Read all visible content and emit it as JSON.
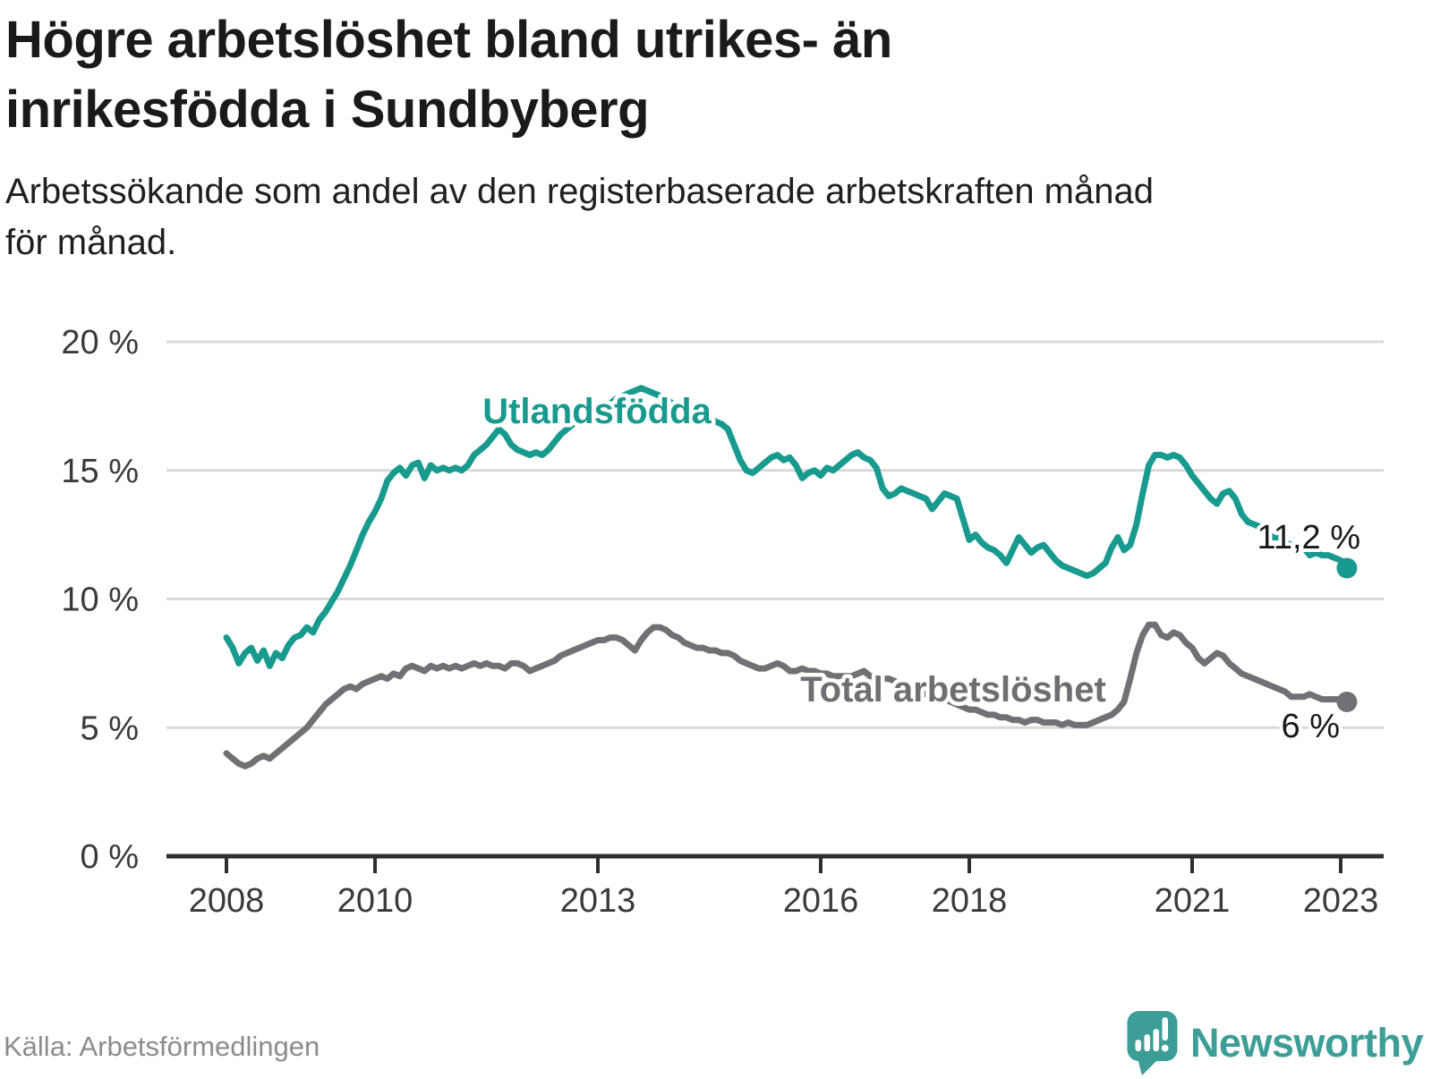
{
  "page": {
    "title_lines": [
      "Högre arbetslöshet bland utrikes- än",
      "inrikesfödda i Sundbyberg"
    ],
    "subtitle_lines": [
      "Arbetssökande som andel av den registerbaserade arbetskraften månad",
      "för månad."
    ],
    "source": "Källa: Arbetsförmedlingen",
    "brand": "Newsworthy"
  },
  "colors": {
    "foreign_born": "#189a8f",
    "total": "#717175",
    "total_label": "#6f6f73",
    "grid": "#d9d9d9",
    "axis": "#2e2e2e",
    "tick_label": "#3a3a3a",
    "title": "#1a1a1a",
    "subtitle": "#1f1f1f",
    "annotation": "#1a1a1a",
    "source": "#8c8c8c",
    "brand": "#3d9e97"
  },
  "chart_data": {
    "type": "line",
    "title": "Högre arbetslöshet bland utrikes- än inrikesfödda i Sundbyberg",
    "subtitle": "Arbetssökande som andel av den registerbaserade arbetskraften månad för månad.",
    "unit": "%",
    "grid": "horizontal",
    "x_start": "2008-01",
    "x_end": "2023-02",
    "x_step_months": 1,
    "ylim": [
      0,
      20
    ],
    "y_ticks": [
      {
        "value": 0,
        "label": "0 %"
      },
      {
        "value": 5,
        "label": "5 %"
      },
      {
        "value": 10,
        "label": "10 %"
      },
      {
        "value": 15,
        "label": "15 %"
      },
      {
        "value": 20,
        "label": "20 %"
      }
    ],
    "x_ticks": [
      {
        "year": 2008,
        "label": "2008"
      },
      {
        "year": 2010,
        "label": "2010"
      },
      {
        "year": 2013,
        "label": "2013"
      },
      {
        "year": 2016,
        "label": "2016"
      },
      {
        "year": 2018,
        "label": "2018"
      },
      {
        "year": 2021,
        "label": "2021"
      },
      {
        "year": 2023,
        "label": "2023"
      }
    ],
    "series": [
      {
        "name": "Utlandsfödda",
        "color_key": "foreign_born",
        "end_label": "11,2 %",
        "end_value": 11.2,
        "values": [
          8.5,
          8.1,
          7.5,
          7.9,
          8.1,
          7.6,
          8.0,
          7.4,
          7.9,
          7.7,
          8.2,
          8.5,
          8.6,
          8.9,
          8.7,
          9.2,
          9.5,
          9.9,
          10.3,
          10.8,
          11.3,
          11.9,
          12.5,
          13.0,
          13.4,
          13.9,
          14.6,
          14.9,
          15.1,
          14.8,
          15.2,
          15.3,
          14.7,
          15.2,
          15.0,
          15.1,
          15.0,
          15.1,
          15.0,
          15.2,
          15.6,
          15.8,
          16.0,
          16.3,
          16.6,
          16.4,
          16.0,
          15.8,
          15.7,
          15.6,
          15.7,
          15.6,
          15.8,
          16.1,
          16.4,
          16.6,
          16.8,
          17.0,
          17.2,
          17.3,
          17.4,
          17.5,
          17.6,
          17.8,
          17.9,
          18.0,
          18.1,
          18.2,
          18.1,
          18.0,
          17.9,
          17.8,
          17.6,
          17.5,
          17.4,
          17.3,
          17.2,
          17.1,
          17.0,
          16.9,
          16.8,
          16.6,
          16.0,
          15.4,
          15.0,
          14.9,
          15.1,
          15.3,
          15.5,
          15.6,
          15.4,
          15.5,
          15.2,
          14.7,
          14.9,
          15.0,
          14.8,
          15.1,
          15.0,
          15.2,
          15.4,
          15.6,
          15.7,
          15.5,
          15.4,
          15.1,
          14.3,
          14.0,
          14.1,
          14.3,
          14.2,
          14.1,
          14.0,
          13.9,
          13.5,
          13.8,
          14.1,
          14.0,
          13.9,
          13.1,
          12.3,
          12.5,
          12.2,
          12.0,
          11.9,
          11.7,
          11.4,
          11.9,
          12.4,
          12.1,
          11.8,
          12.0,
          12.1,
          11.8,
          11.5,
          11.3,
          11.2,
          11.1,
          11.0,
          10.9,
          11.0,
          11.2,
          11.4,
          12.0,
          12.4,
          11.9,
          12.1,
          12.9,
          14.1,
          15.2,
          15.6,
          15.6,
          15.5,
          15.6,
          15.5,
          15.2,
          14.8,
          14.5,
          14.2,
          13.9,
          13.7,
          14.1,
          14.2,
          13.9,
          13.3,
          13.0,
          12.9,
          12.8,
          12.6,
          12.4,
          12.4,
          12.2,
          12.1,
          11.9,
          12.0,
          11.7,
          11.8,
          11.7,
          11.7,
          11.6,
          11.5,
          11.2
        ]
      },
      {
        "name": "Total arbetslöshet",
        "color_key": "total",
        "end_label": "6 %",
        "end_value": 6.0,
        "values": [
          4.0,
          3.8,
          3.6,
          3.5,
          3.6,
          3.8,
          3.9,
          3.8,
          4.0,
          4.2,
          4.4,
          4.6,
          4.8,
          5.0,
          5.3,
          5.6,
          5.9,
          6.1,
          6.3,
          6.5,
          6.6,
          6.5,
          6.7,
          6.8,
          6.9,
          7.0,
          6.9,
          7.1,
          7.0,
          7.3,
          7.4,
          7.3,
          7.2,
          7.4,
          7.3,
          7.4,
          7.3,
          7.4,
          7.3,
          7.4,
          7.5,
          7.4,
          7.5,
          7.4,
          7.4,
          7.3,
          7.5,
          7.5,
          7.4,
          7.2,
          7.3,
          7.4,
          7.5,
          7.6,
          7.8,
          7.9,
          8.0,
          8.1,
          8.2,
          8.3,
          8.4,
          8.4,
          8.5,
          8.5,
          8.4,
          8.2,
          8.0,
          8.4,
          8.7,
          8.9,
          8.9,
          8.8,
          8.6,
          8.5,
          8.3,
          8.2,
          8.1,
          8.1,
          8.0,
          8.0,
          7.9,
          7.9,
          7.8,
          7.6,
          7.5,
          7.4,
          7.3,
          7.3,
          7.4,
          7.5,
          7.4,
          7.2,
          7.2,
          7.3,
          7.2,
          7.2,
          7.1,
          7.1,
          7.0,
          7.0,
          7.0,
          7.0,
          7.1,
          7.2,
          7.0,
          7.0,
          6.9,
          6.9,
          6.8,
          6.7,
          6.6,
          6.5,
          6.4,
          6.3,
          6.2,
          6.2,
          6.1,
          6.0,
          5.9,
          5.8,
          5.7,
          5.7,
          5.6,
          5.5,
          5.5,
          5.4,
          5.4,
          5.3,
          5.3,
          5.2,
          5.3,
          5.3,
          5.2,
          5.2,
          5.2,
          5.1,
          5.2,
          5.1,
          5.1,
          5.1,
          5.2,
          5.3,
          5.4,
          5.5,
          5.7,
          6.0,
          6.9,
          7.9,
          8.6,
          9.0,
          9.0,
          8.6,
          8.5,
          8.7,
          8.6,
          8.3,
          8.1,
          7.7,
          7.5,
          7.7,
          7.9,
          7.8,
          7.5,
          7.3,
          7.1,
          7.0,
          6.9,
          6.8,
          6.7,
          6.6,
          6.5,
          6.4,
          6.2,
          6.2,
          6.2,
          6.3,
          6.2,
          6.1,
          6.1,
          6.1,
          6.1,
          6.0
        ]
      }
    ]
  }
}
